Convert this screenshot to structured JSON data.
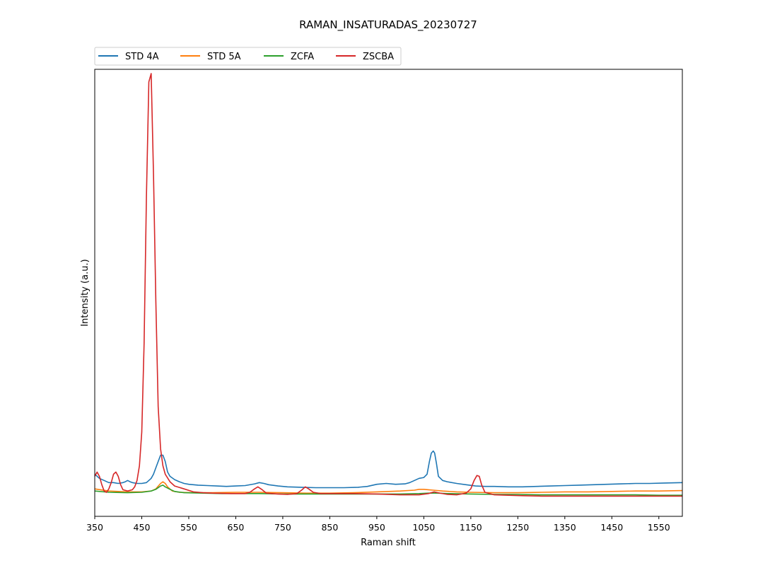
{
  "chart_data": {
    "type": "line",
    "title": "RAMAN_INSATURADAS_20230727",
    "xlabel": "Raman shift",
    "ylabel": "Intensity (a.u.)",
    "xlim": [
      350,
      1600
    ],
    "ylim": [
      -0.06,
      1.0
    ],
    "xticks": [
      350,
      450,
      550,
      650,
      750,
      850,
      950,
      1050,
      1150,
      1250,
      1350,
      1450,
      1550
    ],
    "yticks_shown": false,
    "grid": false,
    "legend_position": "top-left, above plot",
    "series": [
      {
        "name": "STD 4A",
        "color": "#1f77b4",
        "points": [
          [
            350,
            0.04
          ],
          [
            360,
            0.03
          ],
          [
            370,
            0.025
          ],
          [
            380,
            0.02
          ],
          [
            390,
            0.02
          ],
          [
            400,
            0.018
          ],
          [
            410,
            0.02
          ],
          [
            415,
            0.022
          ],
          [
            420,
            0.025
          ],
          [
            425,
            0.022
          ],
          [
            430,
            0.02
          ],
          [
            440,
            0.018
          ],
          [
            450,
            0.018
          ],
          [
            460,
            0.02
          ],
          [
            465,
            0.025
          ],
          [
            470,
            0.03
          ],
          [
            475,
            0.04
          ],
          [
            480,
            0.055
          ],
          [
            485,
            0.07
          ],
          [
            490,
            0.085
          ],
          [
            495,
            0.085
          ],
          [
            500,
            0.07
          ],
          [
            505,
            0.045
          ],
          [
            510,
            0.035
          ],
          [
            520,
            0.027
          ],
          [
            530,
            0.022
          ],
          [
            540,
            0.018
          ],
          [
            550,
            0.016
          ],
          [
            570,
            0.014
          ],
          [
            590,
            0.013
          ],
          [
            610,
            0.012
          ],
          [
            630,
            0.011
          ],
          [
            650,
            0.012
          ],
          [
            670,
            0.013
          ],
          [
            690,
            0.017
          ],
          [
            700,
            0.02
          ],
          [
            710,
            0.018
          ],
          [
            720,
            0.015
          ],
          [
            740,
            0.012
          ],
          [
            760,
            0.01
          ],
          [
            790,
            0.009
          ],
          [
            820,
            0.008
          ],
          [
            850,
            0.008
          ],
          [
            880,
            0.008
          ],
          [
            910,
            0.009
          ],
          [
            930,
            0.011
          ],
          [
            950,
            0.016
          ],
          [
            970,
            0.018
          ],
          [
            990,
            0.016
          ],
          [
            1010,
            0.017
          ],
          [
            1020,
            0.02
          ],
          [
            1030,
            0.025
          ],
          [
            1040,
            0.03
          ],
          [
            1050,
            0.032
          ],
          [
            1057,
            0.04
          ],
          [
            1062,
            0.07
          ],
          [
            1066,
            0.09
          ],
          [
            1070,
            0.095
          ],
          [
            1073,
            0.09
          ],
          [
            1077,
            0.065
          ],
          [
            1081,
            0.035
          ],
          [
            1090,
            0.025
          ],
          [
            1100,
            0.022
          ],
          [
            1120,
            0.018
          ],
          [
            1140,
            0.015
          ],
          [
            1160,
            0.012
          ],
          [
            1180,
            0.011
          ],
          [
            1200,
            0.011
          ],
          [
            1230,
            0.01
          ],
          [
            1260,
            0.01
          ],
          [
            1290,
            0.011
          ],
          [
            1320,
            0.012
          ],
          [
            1350,
            0.013
          ],
          [
            1380,
            0.014
          ],
          [
            1410,
            0.015
          ],
          [
            1440,
            0.016
          ],
          [
            1470,
            0.017
          ],
          [
            1500,
            0.018
          ],
          [
            1530,
            0.018
          ],
          [
            1560,
            0.019
          ],
          [
            1600,
            0.02
          ]
        ]
      },
      {
        "name": "STD 5A",
        "color": "#ff7f0e",
        "points": [
          [
            350,
            0.005
          ],
          [
            380,
            0.0
          ],
          [
            420,
            -0.002
          ],
          [
            450,
            -0.002
          ],
          [
            470,
            0.0
          ],
          [
            480,
            0.005
          ],
          [
            490,
            0.018
          ],
          [
            495,
            0.022
          ],
          [
            500,
            0.018
          ],
          [
            505,
            0.01
          ],
          [
            515,
            0.0
          ],
          [
            530,
            -0.003
          ],
          [
            560,
            -0.004
          ],
          [
            600,
            -0.004
          ],
          [
            650,
            -0.003
          ],
          [
            700,
            -0.003
          ],
          [
            750,
            -0.004
          ],
          [
            800,
            -0.005
          ],
          [
            850,
            -0.005
          ],
          [
            900,
            -0.004
          ],
          [
            950,
            -0.002
          ],
          [
            1000,
            0.0
          ],
          [
            1030,
            0.002
          ],
          [
            1040,
            0.004
          ],
          [
            1050,
            0.004
          ],
          [
            1060,
            0.003
          ],
          [
            1070,
            0.002
          ],
          [
            1090,
            0.0
          ],
          [
            1120,
            -0.002
          ],
          [
            1150,
            -0.003
          ],
          [
            1200,
            -0.004
          ],
          [
            1250,
            -0.004
          ],
          [
            1300,
            -0.003
          ],
          [
            1350,
            -0.002
          ],
          [
            1400,
            -0.002
          ],
          [
            1450,
            -0.001
          ],
          [
            1500,
            0.0
          ],
          [
            1550,
            0.0
          ],
          [
            1600,
            0.001
          ]
        ]
      },
      {
        "name": "ZCFA",
        "color": "#2ca02c",
        "points": [
          [
            350,
            0.0
          ],
          [
            380,
            -0.003
          ],
          [
            420,
            -0.004
          ],
          [
            450,
            -0.003
          ],
          [
            470,
            0.0
          ],
          [
            480,
            0.004
          ],
          [
            490,
            0.012
          ],
          [
            495,
            0.014
          ],
          [
            500,
            0.01
          ],
          [
            510,
            0.004
          ],
          [
            520,
            -0.001
          ],
          [
            540,
            -0.004
          ],
          [
            580,
            -0.005
          ],
          [
            620,
            -0.006
          ],
          [
            660,
            -0.006
          ],
          [
            700,
            -0.006
          ],
          [
            750,
            -0.007
          ],
          [
            800,
            -0.007
          ],
          [
            850,
            -0.007
          ],
          [
            900,
            -0.007
          ],
          [
            950,
            -0.007
          ],
          [
            1000,
            -0.007
          ],
          [
            1040,
            -0.006
          ],
          [
            1060,
            -0.005
          ],
          [
            1080,
            -0.005
          ],
          [
            1100,
            -0.006
          ],
          [
            1150,
            -0.007
          ],
          [
            1200,
            -0.008
          ],
          [
            1250,
            -0.008
          ],
          [
            1300,
            -0.009
          ],
          [
            1350,
            -0.009
          ],
          [
            1400,
            -0.009
          ],
          [
            1450,
            -0.009
          ],
          [
            1500,
            -0.009
          ],
          [
            1550,
            -0.01
          ],
          [
            1600,
            -0.01
          ]
        ]
      },
      {
        "name": "ZSCBA",
        "color": "#d62728",
        "points": [
          [
            350,
            0.035
          ],
          [
            355,
            0.045
          ],
          [
            360,
            0.035
          ],
          [
            365,
            0.015
          ],
          [
            370,
            0.0
          ],
          [
            375,
            -0.003
          ],
          [
            380,
            0.005
          ],
          [
            385,
            0.02
          ],
          [
            390,
            0.04
          ],
          [
            395,
            0.045
          ],
          [
            400,
            0.035
          ],
          [
            405,
            0.015
          ],
          [
            410,
            0.003
          ],
          [
            420,
            0.0
          ],
          [
            430,
            0.003
          ],
          [
            435,
            0.01
          ],
          [
            440,
            0.025
          ],
          [
            445,
            0.06
          ],
          [
            450,
            0.14
          ],
          [
            455,
            0.35
          ],
          [
            460,
            0.7
          ],
          [
            465,
            0.97
          ],
          [
            470,
            0.99
          ],
          [
            475,
            0.75
          ],
          [
            480,
            0.45
          ],
          [
            485,
            0.2
          ],
          [
            490,
            0.1
          ],
          [
            495,
            0.06
          ],
          [
            500,
            0.04
          ],
          [
            510,
            0.022
          ],
          [
            520,
            0.012
          ],
          [
            540,
            0.005
          ],
          [
            560,
            -0.002
          ],
          [
            580,
            -0.004
          ],
          [
            600,
            -0.005
          ],
          [
            640,
            -0.006
          ],
          [
            670,
            -0.006
          ],
          [
            680,
            -0.003
          ],
          [
            690,
            0.005
          ],
          [
            697,
            0.01
          ],
          [
            705,
            0.004
          ],
          [
            715,
            -0.005
          ],
          [
            740,
            -0.007
          ],
          [
            760,
            -0.008
          ],
          [
            780,
            -0.006
          ],
          [
            790,
            0.002
          ],
          [
            798,
            0.01
          ],
          [
            805,
            0.005
          ],
          [
            815,
            -0.003
          ],
          [
            830,
            -0.006
          ],
          [
            860,
            -0.006
          ],
          [
            900,
            -0.006
          ],
          [
            950,
            -0.007
          ],
          [
            1000,
            -0.009
          ],
          [
            1040,
            -0.009
          ],
          [
            1060,
            -0.006
          ],
          [
            1072,
            -0.002
          ],
          [
            1080,
            -0.004
          ],
          [
            1100,
            -0.008
          ],
          [
            1120,
            -0.009
          ],
          [
            1140,
            -0.005
          ],
          [
            1150,
            0.005
          ],
          [
            1157,
            0.025
          ],
          [
            1163,
            0.037
          ],
          [
            1168,
            0.035
          ],
          [
            1173,
            0.015
          ],
          [
            1180,
            -0.003
          ],
          [
            1200,
            -0.009
          ],
          [
            1230,
            -0.01
          ],
          [
            1260,
            -0.011
          ],
          [
            1300,
            -0.012
          ],
          [
            1350,
            -0.012
          ],
          [
            1400,
            -0.012
          ],
          [
            1450,
            -0.012
          ],
          [
            1500,
            -0.012
          ],
          [
            1550,
            -0.012
          ],
          [
            1600,
            -0.012
          ]
        ]
      }
    ]
  }
}
